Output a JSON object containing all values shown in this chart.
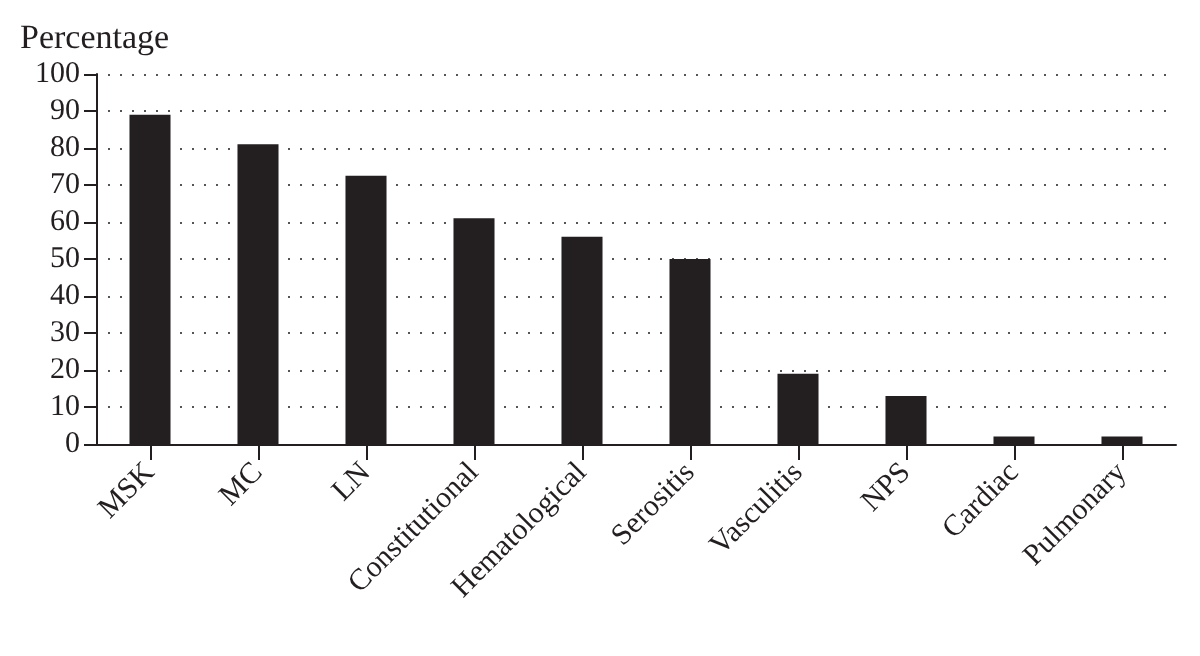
{
  "chart_data": {
    "type": "bar",
    "ylabel": "Percentage",
    "categories": [
      "MSK",
      "MC",
      "LN",
      "Constitutional",
      "Hematological",
      "Serositis",
      "Vasculitis",
      "NPS",
      "Cardiac",
      "Pulmonary"
    ],
    "values": [
      89,
      81,
      72.5,
      61,
      56,
      50,
      19,
      13,
      2,
      2
    ],
    "color": "#231f20",
    "ylim": [
      0,
      100
    ],
    "yticks": [
      0,
      10,
      20,
      30,
      40,
      50,
      60,
      70,
      80,
      90,
      100
    ],
    "grid": "y"
  }
}
